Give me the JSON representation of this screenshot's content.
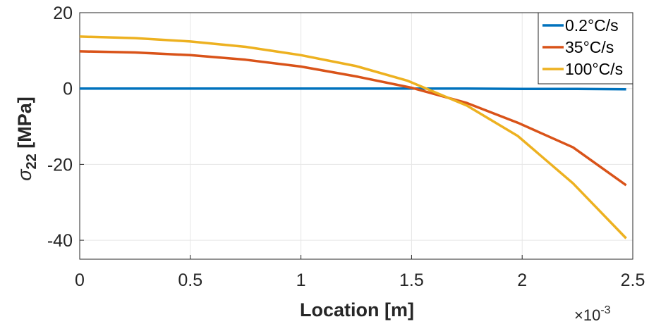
{
  "chart_data": {
    "type": "line",
    "title": "",
    "xlabel": "Location [m]",
    "ylabel_symbol": "σ",
    "ylabel_subscript": "22",
    "ylabel_unit": "[MPa]",
    "x_exponent_prefix": "×10",
    "x_exponent_power": "-3",
    "xlim": [
      0,
      2.5
    ],
    "ylim": [
      -45,
      20
    ],
    "x_ticks": [
      0,
      0.5,
      1,
      1.5,
      2,
      2.5
    ],
    "x_tick_labels": [
      "0",
      "0.5",
      "1",
      "1.5",
      "2",
      "2.5"
    ],
    "y_ticks": [
      -40,
      -20,
      0,
      20
    ],
    "y_tick_labels": [
      "-40",
      "-20",
      "0",
      "20"
    ],
    "grid": true,
    "legend_position": "top-right",
    "series": [
      {
        "name": "0.2°C/s",
        "color": "#0072BD",
        "x": [
          0,
          0.25,
          0.5,
          0.75,
          1.0,
          1.25,
          1.5,
          1.75,
          2.0,
          2.25,
          2.47
        ],
        "y": [
          0,
          0,
          0,
          0,
          0,
          0,
          0,
          0,
          -0.1,
          -0.1,
          -0.2
        ]
      },
      {
        "name": "35°C/s",
        "color": "#D95319",
        "x": [
          0,
          0.25,
          0.5,
          0.75,
          1.0,
          1.25,
          1.5,
          1.75,
          1.98,
          2.23,
          2.47
        ],
        "y": [
          9.8,
          9.5,
          8.8,
          7.6,
          5.8,
          3.2,
          0.2,
          -3.8,
          -9.0,
          -15.5,
          -25.5
        ]
      },
      {
        "name": "100°C/s",
        "color": "#EDB120",
        "x": [
          0,
          0.25,
          0.5,
          0.75,
          1.0,
          1.25,
          1.48,
          1.75,
          1.98,
          2.23,
          2.47
        ],
        "y": [
          13.7,
          13.3,
          12.4,
          11.0,
          8.8,
          5.9,
          2.1,
          -4.5,
          -12.5,
          -25.0,
          -39.5
        ]
      }
    ]
  }
}
